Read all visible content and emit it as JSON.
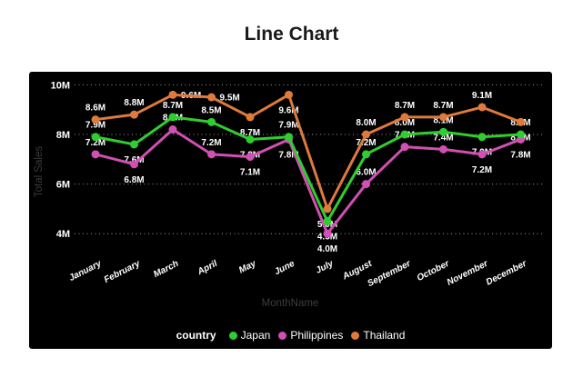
{
  "title": "Line Chart",
  "panel": {
    "background": "#000000"
  },
  "chart_data": {
    "type": "line",
    "title": "Line Chart",
    "xlabel": "MonthName",
    "ylabel": "Total Sales",
    "categories": [
      "January",
      "February",
      "March",
      "April",
      "May",
      "June",
      "July",
      "August",
      "September",
      "October",
      "November",
      "December"
    ],
    "y_axis": {
      "ticks": [
        {
          "label": "10M",
          "value": 10
        },
        {
          "label": "8M",
          "value": 8
        },
        {
          "label": "6M",
          "value": 6
        },
        {
          "label": "4M",
          "value": 4
        }
      ],
      "range": [
        3.3,
        10.8
      ],
      "grid": "dotted-horizontal"
    },
    "series": [
      {
        "name": "Philippines",
        "color": "#D24FB4",
        "values": [
          7.2,
          6.8,
          8.2,
          7.2,
          7.1,
          7.8,
          4.0,
          6.0,
          7.5,
          7.4,
          7.2,
          7.8
        ],
        "labels": [
          "7.2M",
          "6.8M",
          "8.2M",
          "7.2M",
          "7.1M",
          "7.8M",
          "4.0M",
          "6.0M",
          "7.5M",
          "7.4M",
          "7.2M",
          "7.8M"
        ],
        "label_pos": [
          "above",
          "below",
          "above",
          "above",
          "below",
          "below",
          "below",
          "above",
          "above",
          "above",
          "below",
          "below"
        ]
      },
      {
        "name": "Japan",
        "color": "#2FCE2F",
        "values": [
          7.9,
          7.6,
          8.7,
          8.5,
          7.8,
          7.9,
          4.5,
          7.2,
          8.0,
          8.1,
          7.9,
          8.0
        ],
        "labels": [
          "7.9M",
          "7.6M",
          "8.7M",
          "8.5M",
          "7.8M",
          "7.9M",
          "4.5M",
          "7.2M",
          "8.0M",
          "8.1M",
          "7.9M",
          "8.0M"
        ],
        "label_pos": [
          "above",
          "below",
          "above",
          "above",
          "below",
          "above",
          "below",
          "above",
          "above",
          "above",
          "below",
          "above"
        ]
      },
      {
        "name": "Thailand",
        "color": "#DE7A3C",
        "values": [
          8.6,
          8.8,
          9.6,
          9.5,
          8.7,
          9.6,
          5.0,
          8.0,
          8.7,
          8.7,
          9.1,
          8.5
        ],
        "labels": [
          "8.6M",
          "8.8M",
          "9.6M",
          "9.5M",
          "8.7M",
          "9.6M",
          "5.0M",
          "8.0M",
          "8.7M",
          "8.7M",
          "9.1M",
          "8.5M"
        ],
        "label_pos": [
          "above",
          "above",
          "right",
          "right",
          "below",
          "below",
          "below",
          "above",
          "above",
          "above",
          "above",
          "below"
        ]
      }
    ],
    "legend": {
      "title": "country",
      "position": "bottom",
      "entries": [
        {
          "name": "Japan",
          "color": "#2FCE2F"
        },
        {
          "name": "Philippines",
          "color": "#D24FB4"
        },
        {
          "name": "Thailand",
          "color": "#DE7A3C"
        }
      ]
    },
    "text_colors": {
      "data_labels": "#ffffff",
      "axis_ticks": "#ffffff",
      "axis_titles": "#3d3d3d"
    }
  }
}
